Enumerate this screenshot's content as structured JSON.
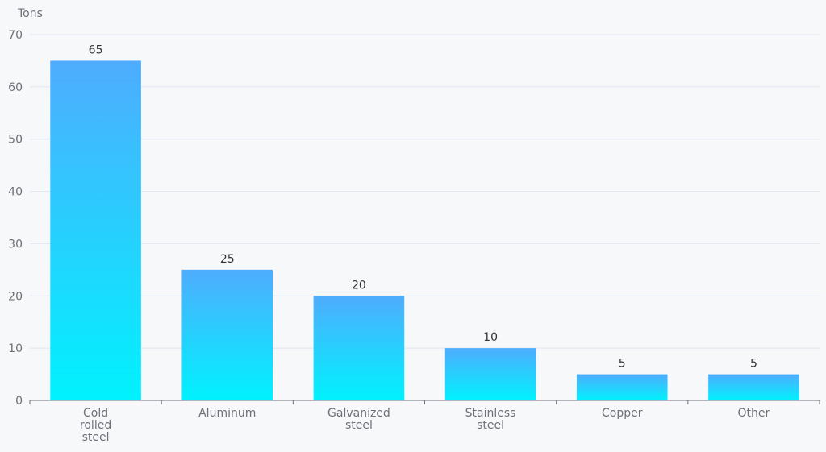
{
  "chart_data": {
    "type": "bar",
    "ylabel": "Tons",
    "ylim": [
      0,
      70
    ],
    "yticks": [
      0,
      10,
      20,
      30,
      40,
      50,
      60,
      70
    ],
    "categories": [
      [
        "Cold",
        "rolled",
        "steel"
      ],
      [
        "Aluminum"
      ],
      [
        "Galvanized",
        "steel"
      ],
      [
        "Stainless",
        "steel"
      ],
      [
        "Copper"
      ],
      [
        "Other"
      ]
    ],
    "values": [
      65,
      25,
      20,
      10,
      5,
      5
    ],
    "grid": true,
    "colors": {
      "bar_top": "#4facfe",
      "bar_bottom": "#00f2fe",
      "grid": "#e0e6f1",
      "axis": "#6e7079"
    }
  }
}
